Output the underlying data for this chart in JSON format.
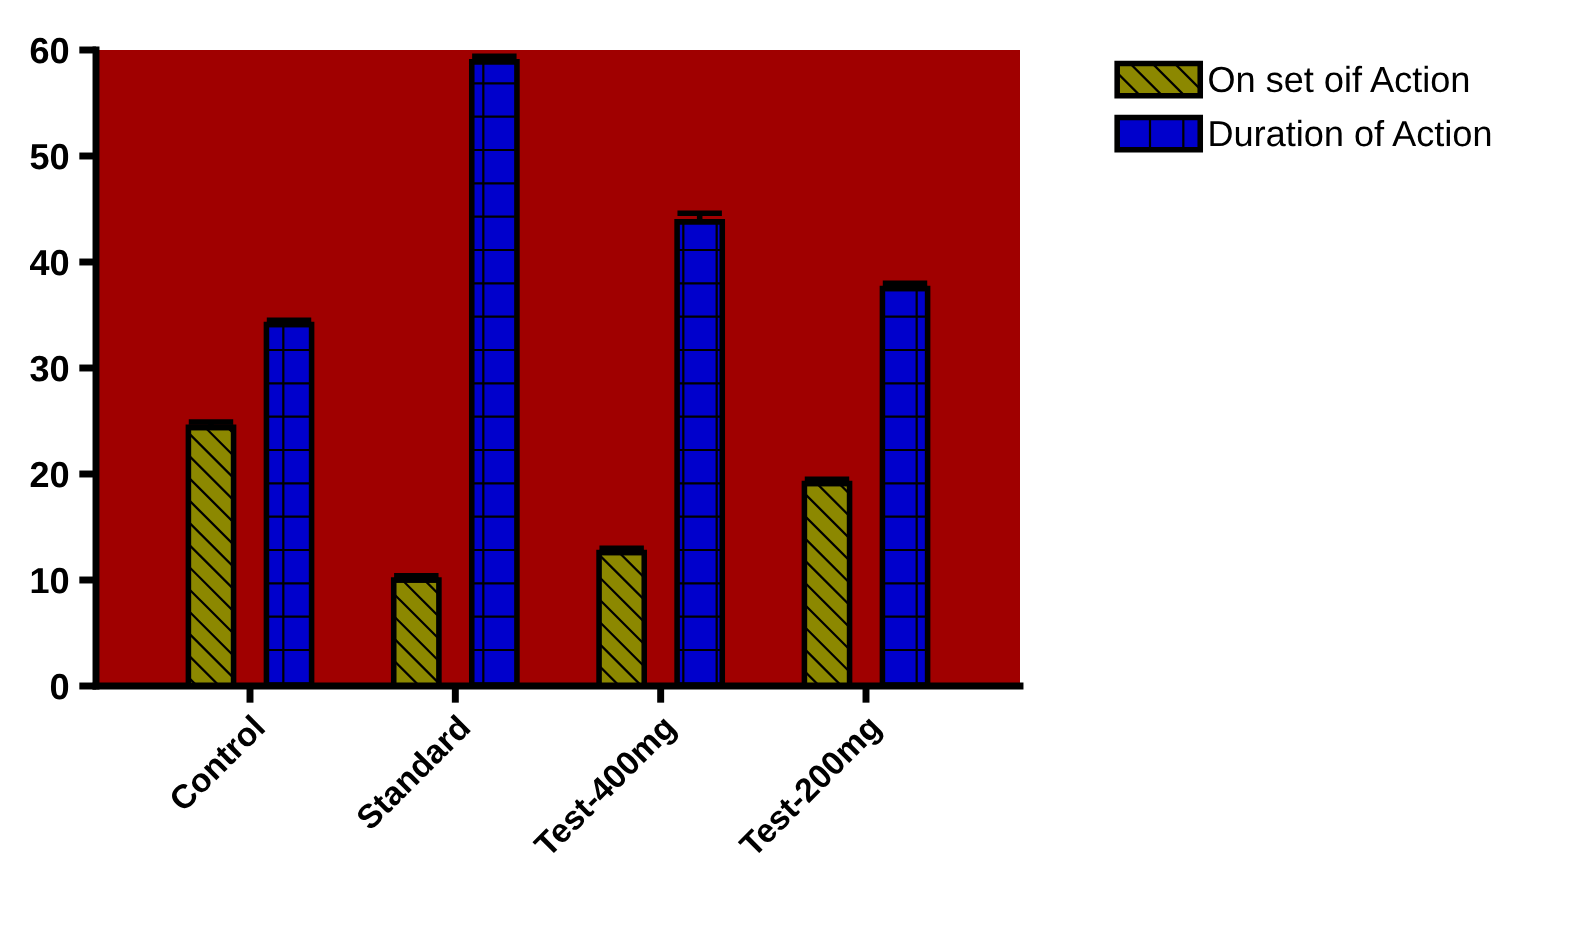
{
  "chart_data": {
    "type": "bar",
    "categories": [
      "Control",
      "Standard",
      "Test-400mg",
      "Test-200mg"
    ],
    "series": [
      {
        "name": "On set oif Action",
        "color": "#8c8800",
        "values": [
          24.4,
          10.0,
          12.6,
          19.1
        ],
        "errors": [
          0.5,
          0.4,
          0.4,
          0.4
        ]
      },
      {
        "name": "Duration of Action",
        "color": "#0000cc",
        "values": [
          34.1,
          58.9,
          43.8,
          37.5
        ],
        "errors": [
          0.4,
          0.5,
          0.8,
          0.5
        ]
      }
    ],
    "ylim": [
      0,
      60
    ],
    "yticks": [
      0,
      10,
      20,
      30,
      40,
      50,
      60
    ],
    "grid": false,
    "legend": "top right"
  }
}
